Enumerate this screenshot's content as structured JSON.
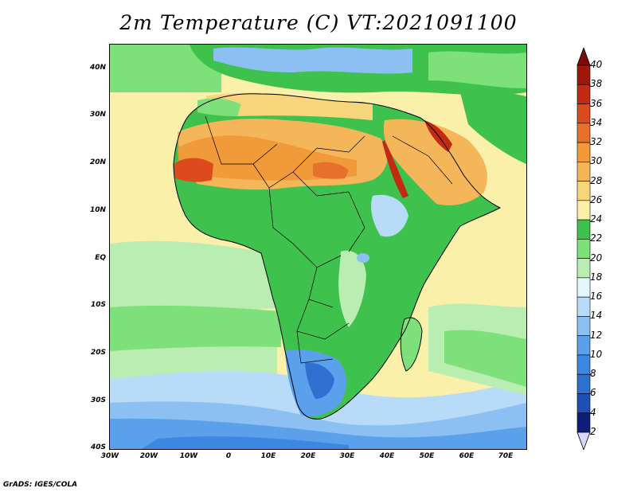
{
  "title": "2m Temperature (C) VT:2021091100",
  "credit": "GrADS: IGES/COLA",
  "map": {
    "lat_labels": [
      "40N",
      "30N",
      "20N",
      "10N",
      "EQ",
      "10S",
      "20S",
      "30S",
      "40S"
    ],
    "lon_labels": [
      "30W",
      "20W",
      "10W",
      "0",
      "10E",
      "20E",
      "30E",
      "40E",
      "50E",
      "60E",
      "70E"
    ]
  },
  "colorbar": {
    "levels": [
      "2",
      "4",
      "6",
      "8",
      "10",
      "12",
      "14",
      "16",
      "18",
      "20",
      "22",
      "24",
      "26",
      "28",
      "30",
      "32",
      "34",
      "36",
      "38",
      "40"
    ],
    "colors": [
      "#d7d7f7",
      "#0d1f7a",
      "#1f4fb5",
      "#2f6fd0",
      "#3d87e0",
      "#5aa0ea",
      "#8cc0f2",
      "#b8dcf8",
      "#e4f7fb",
      "#b9edb1",
      "#7ee07a",
      "#3fc24d",
      "#fbf0a9",
      "#f7d67b",
      "#f5b65a",
      "#f09a3a",
      "#e8702a",
      "#dc4a1e",
      "#c42914",
      "#a0160d",
      "#7a0c0c"
    ],
    "icons": [
      "down-triangle-icon",
      "up-triangle-icon"
    ]
  }
}
